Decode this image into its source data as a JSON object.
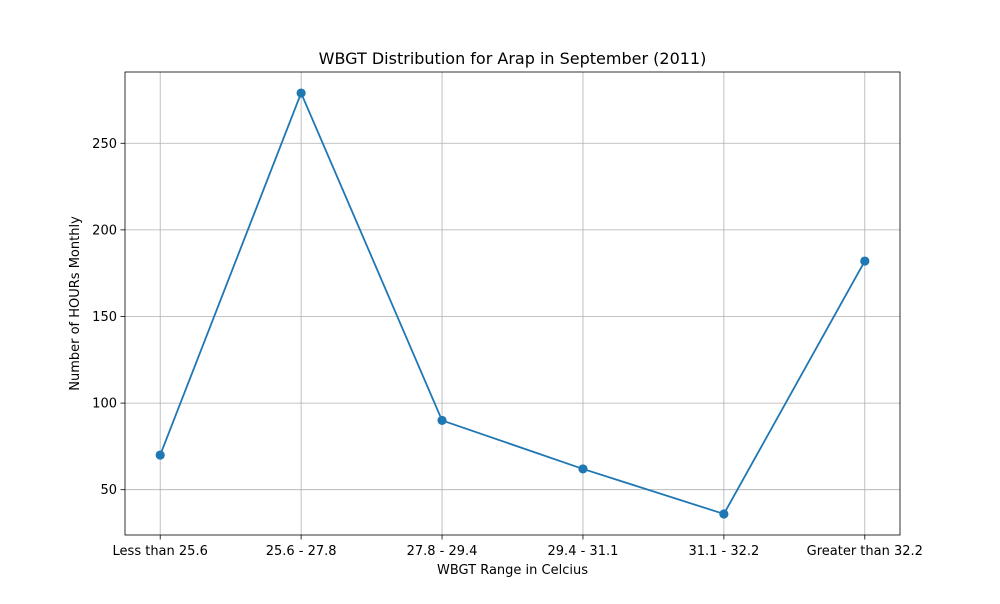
{
  "chart_data": {
    "type": "line",
    "title": "WBGT Distribution for Arap in September (2011)",
    "xlabel": "WBGT Range in Celcius",
    "ylabel": "Number of HOURs Monthly",
    "categories": [
      "Less than 25.6",
      "25.6 - 27.8",
      "27.8 - 29.4",
      "29.4 - 31.1",
      "31.1 - 32.2",
      "Greater than 32.2"
    ],
    "series": [
      {
        "values": [
          70,
          279,
          90,
          62,
          36,
          182
        ],
        "color": "#1f77b4",
        "marker": "circle"
      }
    ],
    "ylim": [
      23.85,
      291.15
    ],
    "yticks": [
      50,
      100,
      150,
      200,
      250
    ],
    "grid": true
  }
}
